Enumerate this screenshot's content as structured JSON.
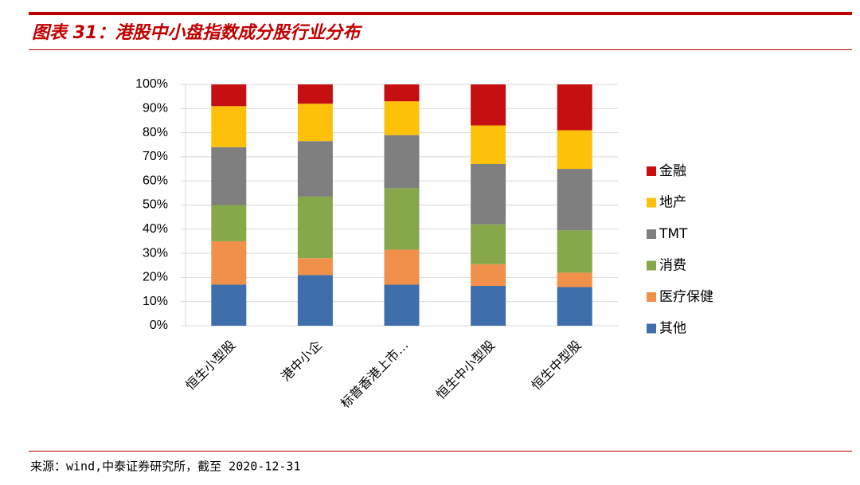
{
  "chart_data": {
    "type": "stacked_bar",
    "title": "图表 31：港股中小盘指数成分股行业分布",
    "source": "来源：wind,中泰证券研究所，截至 2020-12-31",
    "categories": [
      "恒生小型股",
      "港中小企",
      "标普香港上市…",
      "恒生中小型股",
      "恒生中型股"
    ],
    "series": [
      {
        "name": "其他",
        "color": "#3f6faa",
        "values": [
          17,
          21,
          17,
          16.5,
          16
        ]
      },
      {
        "name": "医疗保健",
        "color": "#f0904a",
        "values": [
          18,
          7,
          14.5,
          9,
          6
        ]
      },
      {
        "name": "消费",
        "color": "#86a84a",
        "values": [
          15,
          25.5,
          25.5,
          16.5,
          17.5
        ]
      },
      {
        "name": "TMT",
        "color": "#7f7f7f",
        "values": [
          24,
          23,
          22,
          25,
          25.5
        ]
      },
      {
        "name": "地产",
        "color": "#fdc10a",
        "values": [
          17,
          15.5,
          14,
          16,
          16
        ]
      },
      {
        "name": "金融",
        "color": "#c50f10",
        "values": [
          9,
          8,
          7,
          17,
          19
        ]
      }
    ],
    "ylim": [
      0,
      100
    ],
    "yticks": [
      {
        "value": 0,
        "label": "0%"
      },
      {
        "value": 10,
        "label": "10%"
      },
      {
        "value": 20,
        "label": "20%"
      },
      {
        "value": 30,
        "label": "30%"
      },
      {
        "value": 40,
        "label": "40%"
      },
      {
        "value": 50,
        "label": "50%"
      },
      {
        "value": 60,
        "label": "60%"
      },
      {
        "value": 70,
        "label": "70%"
      },
      {
        "value": 80,
        "label": "80%"
      },
      {
        "value": 90,
        "label": "90%"
      },
      {
        "value": 100,
        "label": "100%"
      }
    ],
    "grid": true,
    "legend": "right"
  }
}
